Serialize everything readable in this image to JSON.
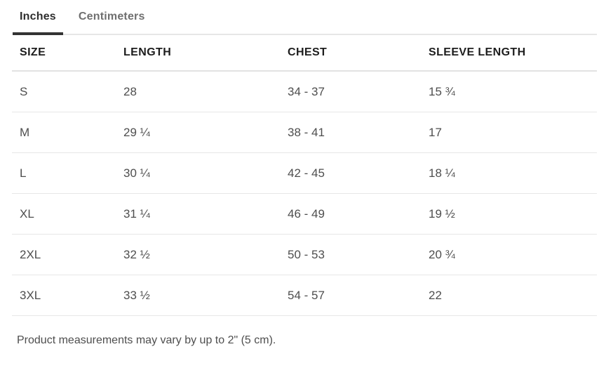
{
  "tabs": [
    {
      "label": "Inches",
      "active": true
    },
    {
      "label": "Centimeters",
      "active": false
    }
  ],
  "table": {
    "headers": [
      "SIZE",
      "LENGTH",
      "CHEST",
      "SLEEVE LENGTH"
    ],
    "rows": [
      {
        "size": "S",
        "length": "28",
        "chest": "34 - 37",
        "sleeve": "15 ¾"
      },
      {
        "size": "M",
        "length": "29 ¼",
        "chest": "38 - 41",
        "sleeve": "17"
      },
      {
        "size": "L",
        "length": "30 ¼",
        "chest": "42 - 45",
        "sleeve": "18 ¼"
      },
      {
        "size": "XL",
        "length": "31 ¼",
        "chest": "46 - 49",
        "sleeve": "19 ½"
      },
      {
        "size": "2XL",
        "length": "32 ½",
        "chest": "50 - 53",
        "sleeve": "20 ¾"
      },
      {
        "size": "3XL",
        "length": "33 ½",
        "chest": "54 - 57",
        "sleeve": "22"
      }
    ]
  },
  "footer": {
    "note": "Product measurements may vary by up to 2\" (5 cm)."
  },
  "colors": {
    "active_tab_text": "#2e2e2e",
    "active_tab_underline": "#333333",
    "inactive_tab_text": "#6f6f6f",
    "header_text": "#1d1d1d",
    "body_text": "#4e4e4e",
    "separator_light": "#e7e7e7",
    "background": "#ffffff"
  }
}
